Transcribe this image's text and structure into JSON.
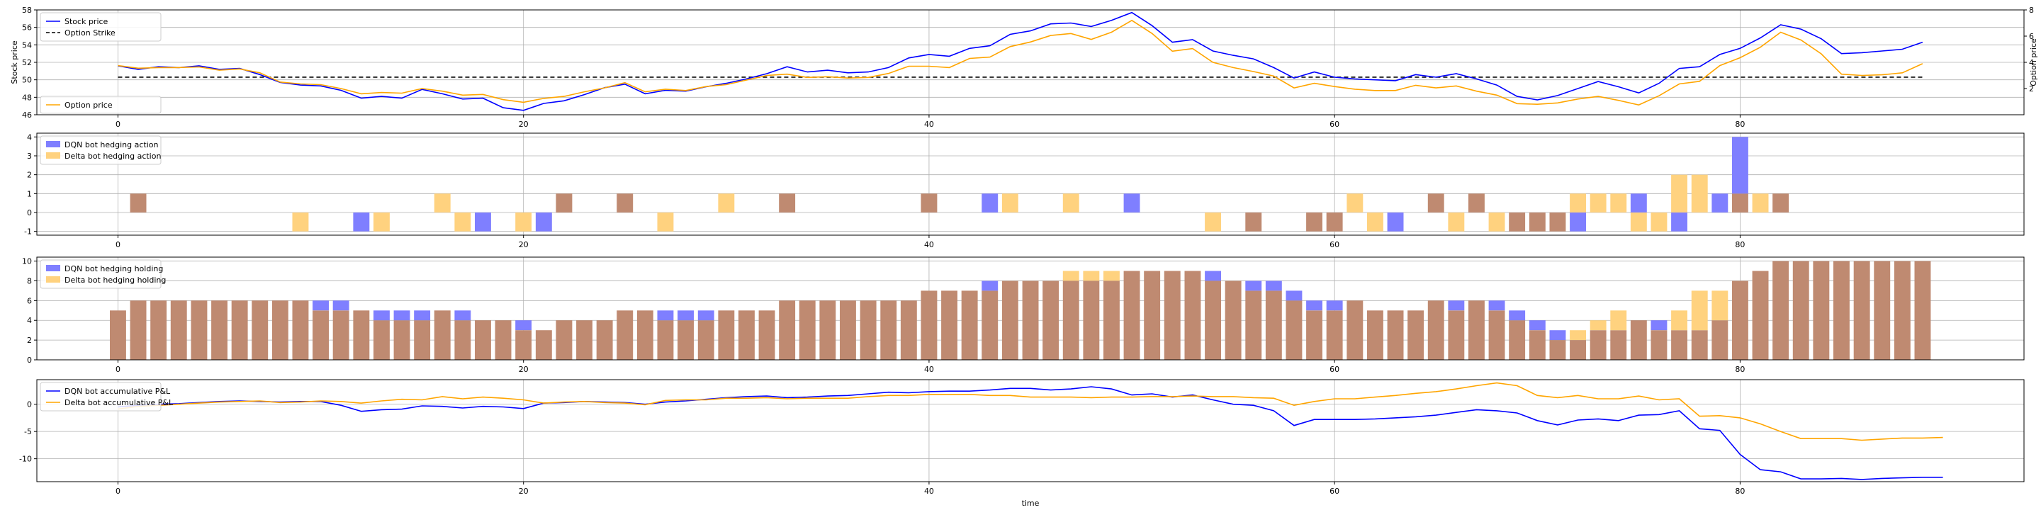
{
  "colors": {
    "blue": "#0000ff",
    "orange": "#ffa500",
    "blue_bar": "#7f7fff",
    "orange_bar": "#ffd27f",
    "overlap": "#bf8a71"
  },
  "chart_data": [
    {
      "type": "line",
      "xlabel": "",
      "ylabel": "Stock price",
      "ylabel_right": "Option price",
      "xlim": [
        -4,
        94
      ],
      "ylim": [
        46,
        58
      ],
      "ylim_right": [
        0,
        8
      ],
      "xticks": [
        "0",
        "20",
        "40",
        "60",
        "80"
      ],
      "yticks": [
        "46",
        "48",
        "50",
        "52",
        "54",
        "56",
        "58"
      ],
      "yticks_right": [
        "2",
        "4",
        "6",
        "8"
      ],
      "grid": true,
      "legend": [
        "Stock price",
        "Option Strike"
      ],
      "legend_right": [
        "Option price"
      ],
      "strike": 50.3,
      "series": [
        {
          "name": "Stock price",
          "axis": "left",
          "color": "#0000ff",
          "values": [
            51.6,
            51.2,
            51.5,
            51.4,
            51.6,
            51.2,
            51.3,
            50.6,
            49.7,
            49.4,
            49.3,
            48.8,
            47.9,
            48.1,
            47.9,
            48.9,
            48.4,
            47.8,
            47.9,
            46.8,
            46.5,
            47.3,
            47.6,
            48.3,
            49.1,
            49.5,
            48.4,
            48.8,
            48.7,
            49.2,
            49.6,
            50.1,
            50.7,
            51.5,
            50.9,
            51.1,
            50.8,
            50.9,
            51.4,
            52.5,
            52.9,
            52.7,
            53.6,
            53.9,
            55.2,
            55.6,
            56.4,
            56.5,
            56.1,
            56.8,
            57.7,
            56.2,
            54.3,
            54.6,
            53.3,
            52.8,
            52.4,
            51.4,
            50.2,
            50.9,
            50.3,
            50.1,
            50.0,
            49.9,
            50.6,
            50.3,
            50.7,
            50.1,
            49.4,
            48.1,
            47.7,
            48.2,
            49.0,
            49.8,
            49.2,
            48.5,
            49.6,
            51.3,
            51.5,
            52.9,
            53.6,
            54.8,
            56.3,
            55.8,
            54.7,
            53.0,
            53.1,
            53.3,
            53.5,
            54.3
          ]
        },
        {
          "name": "Option price",
          "axis": "right",
          "color": "#ffa500",
          "values": [
            3.75,
            3.55,
            3.6,
            3.6,
            3.65,
            3.4,
            3.5,
            3.2,
            2.5,
            2.35,
            2.3,
            2.0,
            1.6,
            1.7,
            1.65,
            2.0,
            1.8,
            1.5,
            1.55,
            1.15,
            0.95,
            1.25,
            1.4,
            1.75,
            2.05,
            2.45,
            1.75,
            1.95,
            1.85,
            2.15,
            2.3,
            2.65,
            3.0,
            3.1,
            2.85,
            2.9,
            2.8,
            2.85,
            3.15,
            3.7,
            3.7,
            3.6,
            4.3,
            4.4,
            5.2,
            5.55,
            6.05,
            6.2,
            5.75,
            6.3,
            7.2,
            6.2,
            4.85,
            5.05,
            4.0,
            3.6,
            3.3,
            2.95,
            2.05,
            2.4,
            2.15,
            1.95,
            1.85,
            1.85,
            2.25,
            2.05,
            2.2,
            1.8,
            1.5,
            0.85,
            0.8,
            0.9,
            1.2,
            1.4,
            1.1,
            0.75,
            1.45,
            2.35,
            2.55,
            3.75,
            4.35,
            5.15,
            6.3,
            5.7,
            4.65,
            3.1,
            3.0,
            3.05,
            3.2,
            3.9
          ]
        }
      ]
    },
    {
      "type": "bar",
      "xlim": [
        -4,
        94
      ],
      "ylim": [
        -1.2,
        4.2
      ],
      "xticks": [
        "0",
        "20",
        "40",
        "60",
        "80"
      ],
      "yticks": [
        "-1",
        "0",
        "1",
        "2",
        "3",
        "4"
      ],
      "grid": true,
      "legend": [
        "DQN bot hedging action",
        "Delta bot hedging action"
      ],
      "series": [
        {
          "name": "DQN bot hedging action",
          "color": "#7f7fff",
          "values": [
            0,
            1,
            0,
            0,
            0,
            0,
            0,
            0,
            0,
            0,
            0,
            0,
            -1,
            0,
            0,
            0,
            0,
            0,
            -1,
            0,
            0,
            -1,
            1,
            0,
            0,
            1,
            0,
            0,
            0,
            0,
            0,
            0,
            0,
            1,
            0,
            0,
            0,
            0,
            0,
            0,
            1,
            0,
            0,
            1,
            0,
            0,
            0,
            0,
            0,
            0,
            1,
            0,
            0,
            0,
            0,
            0,
            -1,
            0,
            0,
            -1,
            -1,
            0,
            0,
            -1,
            0,
            1,
            0,
            1,
            0,
            -1,
            -1,
            -1,
            -1,
            0,
            0,
            1,
            0,
            -1,
            0,
            1,
            4,
            0,
            1,
            0,
            0,
            0,
            0,
            0,
            0,
            0
          ]
        },
        {
          "name": "Delta bot hedging action",
          "color": "#ffa500",
          "values": [
            0,
            1,
            0,
            0,
            0,
            0,
            0,
            0,
            0,
            -1,
            0,
            0,
            0,
            -1,
            0,
            0,
            1,
            -1,
            0,
            0,
            -1,
            0,
            1,
            0,
            0,
            1,
            0,
            -1,
            0,
            0,
            1,
            0,
            0,
            1,
            0,
            0,
            0,
            0,
            0,
            0,
            1,
            0,
            0,
            0,
            1,
            0,
            0,
            1,
            0,
            0,
            0,
            0,
            0,
            0,
            -1,
            0,
            -1,
            0,
            0,
            -1,
            -1,
            1,
            -1,
            0,
            0,
            1,
            -1,
            1,
            -1,
            -1,
            -1,
            -1,
            1,
            1,
            1,
            -1,
            -1,
            2,
            2,
            0,
            1,
            1,
            1,
            0,
            0,
            0,
            0,
            0,
            0,
            0
          ]
        }
      ]
    },
    {
      "type": "bar",
      "xlim": [
        -4,
        94
      ],
      "ylim": [
        0,
        10.4
      ],
      "xticks": [
        "0",
        "20",
        "40",
        "60",
        "80"
      ],
      "yticks": [
        "0",
        "2",
        "4",
        "6",
        "8",
        "10"
      ],
      "grid": true,
      "legend": [
        "DQN bot hedging holding",
        "Delta bot hedging holding"
      ],
      "series": [
        {
          "name": "DQN bot hedging holding",
          "color": "#7f7fff",
          "values": [
            5,
            6,
            6,
            6,
            6,
            6,
            6,
            6,
            6,
            6,
            6,
            6,
            5,
            5,
            5,
            5,
            5,
            5,
            4,
            4,
            4,
            3,
            4,
            4,
            4,
            5,
            5,
            5,
            5,
            5,
            5,
            5,
            5,
            6,
            6,
            6,
            6,
            6,
            6,
            6,
            7,
            7,
            7,
            8,
            8,
            8,
            8,
            8,
            8,
            8,
            9,
            9,
            9,
            9,
            9,
            8,
            8,
            8,
            7,
            6,
            6,
            6,
            5,
            5,
            5,
            6,
            6,
            6,
            6,
            5,
            4,
            3,
            2,
            3,
            3,
            4,
            4,
            3,
            3,
            4,
            8,
            9,
            10,
            10,
            10,
            10,
            10,
            10,
            10,
            10
          ]
        },
        {
          "name": "Delta bot hedging holding",
          "color": "#ffa500",
          "values": [
            5,
            6,
            6,
            6,
            6,
            6,
            6,
            6,
            6,
            6,
            5,
            5,
            5,
            4,
            4,
            4,
            5,
            4,
            4,
            4,
            3,
            3,
            4,
            4,
            4,
            5,
            5,
            4,
            4,
            4,
            5,
            5,
            5,
            6,
            6,
            6,
            6,
            6,
            6,
            6,
            7,
            7,
            7,
            7,
            8,
            8,
            8,
            9,
            9,
            9,
            9,
            9,
            9,
            9,
            8,
            8,
            7,
            7,
            6,
            5,
            5,
            6,
            5,
            5,
            5,
            6,
            5,
            6,
            5,
            4,
            3,
            2,
            3,
            4,
            5,
            4,
            3,
            5,
            7,
            7,
            8,
            9,
            10,
            10,
            10,
            10,
            10,
            10,
            10,
            10
          ]
        }
      ]
    },
    {
      "type": "line",
      "xlabel": "time",
      "xlim": [
        -4,
        94
      ],
      "ylim": [
        -14.2,
        4.5
      ],
      "xticks": [
        "0",
        "20",
        "40",
        "60",
        "80"
      ],
      "yticks": [
        "-10",
        "-5",
        "0"
      ],
      "grid": true,
      "legend": [
        "DQN bot accumulative P&L",
        "Delta bot accumulative P&L"
      ],
      "series": [
        {
          "name": "DQN bot accumulative P&L",
          "color": "#0000ff",
          "values": [
            -0.5,
            -0.2,
            0.0,
            0.1,
            0.3,
            0.5,
            0.6,
            0.5,
            0.4,
            0.5,
            0.5,
            -0.2,
            -1.3,
            -1.0,
            -0.9,
            -0.3,
            -0.4,
            -0.7,
            -0.4,
            -0.5,
            -0.8,
            0.2,
            0.3,
            0.5,
            0.4,
            0.3,
            0.0,
            0.4,
            0.6,
            0.9,
            1.2,
            1.4,
            1.5,
            1.2,
            1.3,
            1.5,
            1.6,
            1.9,
            2.2,
            2.1,
            2.3,
            2.4,
            2.4,
            2.6,
            2.9,
            2.9,
            2.6,
            2.8,
            3.2,
            2.8,
            1.7,
            1.9,
            1.3,
            1.7,
            0.8,
            0.0,
            -0.2,
            -1.2,
            -3.9,
            -2.8,
            -2.8,
            -2.8,
            -2.7,
            -2.5,
            -2.3,
            -2.0,
            -1.5,
            -1.0,
            -1.2,
            -1.6,
            -3.0,
            -3.8,
            -2.9,
            -2.7,
            -3.0,
            -2.0,
            -1.9,
            -1.2,
            -4.5,
            -4.8,
            -9.2,
            -12.0,
            -12.4,
            -13.7,
            -13.7,
            -13.6,
            -13.8,
            -13.6,
            -13.5,
            -13.4,
            -13.4
          ]
        },
        {
          "name": "Delta bot accumulative P&L",
          "color": "#ffa500",
          "values": [
            -0.9,
            -0.4,
            -0.2,
            0.0,
            0.2,
            0.4,
            0.5,
            0.6,
            0.3,
            0.4,
            0.6,
            0.5,
            0.2,
            0.6,
            0.9,
            0.8,
            1.4,
            1.0,
            1.3,
            1.1,
            0.8,
            0.2,
            0.4,
            0.5,
            0.3,
            0.2,
            -0.1,
            0.7,
            0.8,
            0.8,
            1.1,
            1.1,
            1.2,
            1.0,
            1.1,
            1.1,
            1.1,
            1.4,
            1.6,
            1.6,
            1.8,
            1.8,
            1.8,
            1.6,
            1.6,
            1.3,
            1.3,
            1.3,
            1.2,
            1.3,
            1.3,
            1.4,
            1.4,
            1.5,
            1.4,
            1.4,
            1.2,
            1.1,
            -0.2,
            0.5,
            1.0,
            1.0,
            1.3,
            1.6,
            2.0,
            2.3,
            2.8,
            3.4,
            3.9,
            3.4,
            1.6,
            1.2,
            1.6,
            1.0,
            1.0,
            1.5,
            0.8,
            1.0,
            -2.2,
            -2.1,
            -2.5,
            -3.6,
            -5.0,
            -6.3,
            -6.3,
            -6.3,
            -6.6,
            -6.4,
            -6.2,
            -6.2,
            -6.1
          ]
        }
      ]
    }
  ]
}
